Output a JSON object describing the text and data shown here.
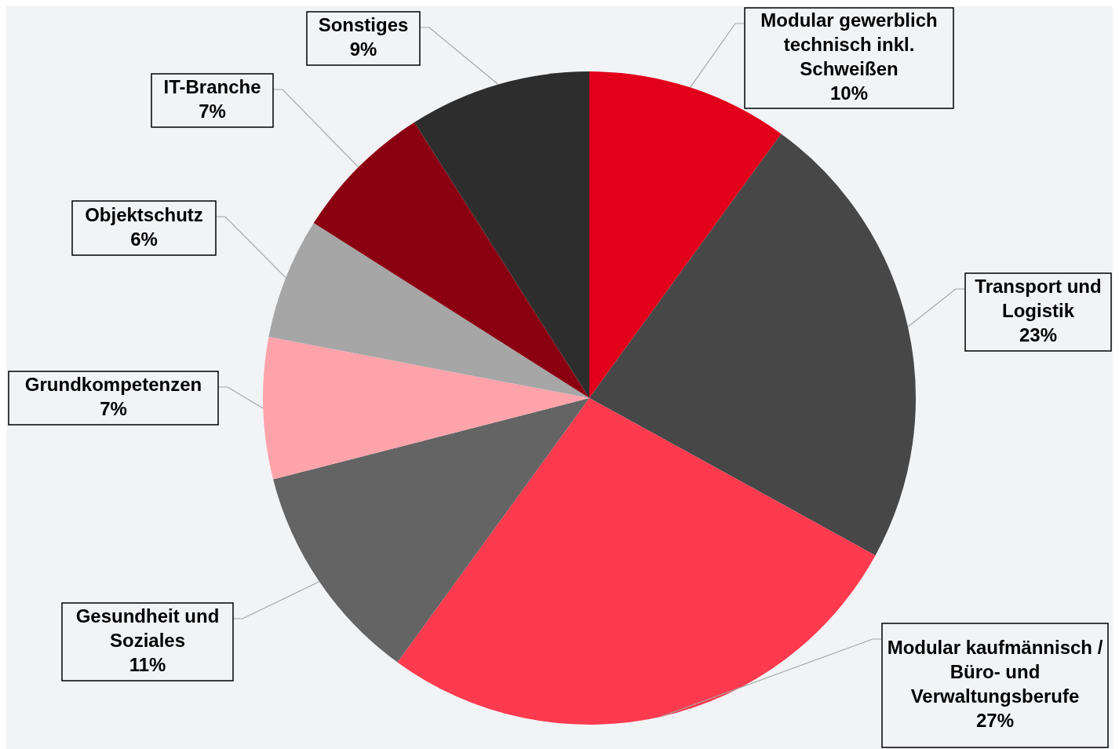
{
  "chart_data": {
    "type": "pie",
    "categories": [
      "Modular gewerblich technisch inkl. Schweißen",
      "Transport und Logistik",
      "Modular kaufmännisch / Büro- und Verwaltungsberufe",
      "Gesundheit und Soziales",
      "Grundkompetenzen",
      "Objektschutz",
      "IT-Branche",
      "Sonstiges"
    ],
    "values": [
      10,
      23,
      27,
      11,
      7,
      6,
      7,
      9
    ],
    "value_labels": [
      "10%",
      "23%",
      "27%",
      "11%",
      "7%",
      "6%",
      "7%",
      "9%"
    ],
    "colors": [
      "#e2001a",
      "#474747",
      "#fe3a4e",
      "#646464",
      "#ffa3ab",
      "#a6a6a6",
      "#8b0011",
      "#2d2d2d"
    ]
  }
}
